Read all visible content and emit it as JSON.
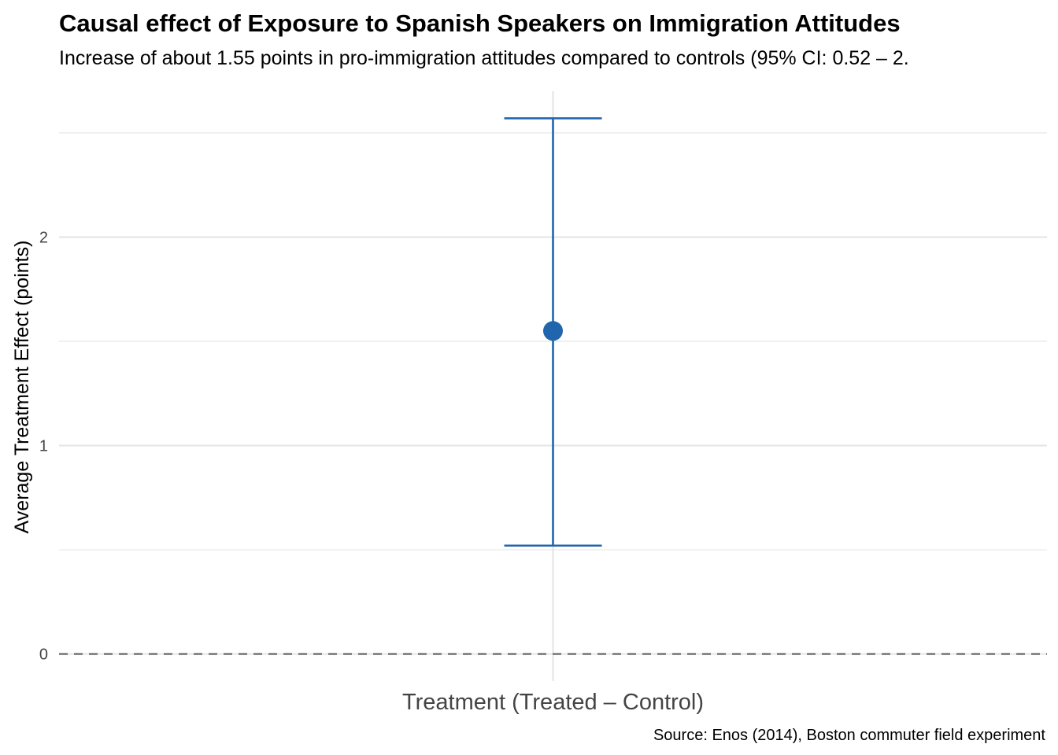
{
  "chart_data": {
    "type": "errorbar",
    "title": "Causal effect of Exposure to Spanish Speakers on Immigration Attitudes",
    "subtitle": "Increase of about 1.55 points in pro-immigration attitudes compared to controls (95% CI: 0.52 – 2.",
    "caption": "Source: Enos (2014), Boston commuter field experiment",
    "xlabel": "",
    "ylabel": "Average Treatment Effect (points)",
    "categories": [
      "Treatment (Treated – Control)"
    ],
    "estimate": [
      1.55
    ],
    "ci_low": [
      0.52
    ],
    "ci_high": [
      2.57
    ],
    "ylim": [
      -0.13,
      2.7
    ],
    "yticks": [
      0,
      1,
      2
    ],
    "yticks_minor": [
      0.5,
      1.5,
      2.5
    ],
    "reference_line": 0,
    "grid": true,
    "colors": {
      "series": "#2166ac",
      "reference": "#6e6e6e",
      "grid": "#e6e6e6"
    }
  }
}
